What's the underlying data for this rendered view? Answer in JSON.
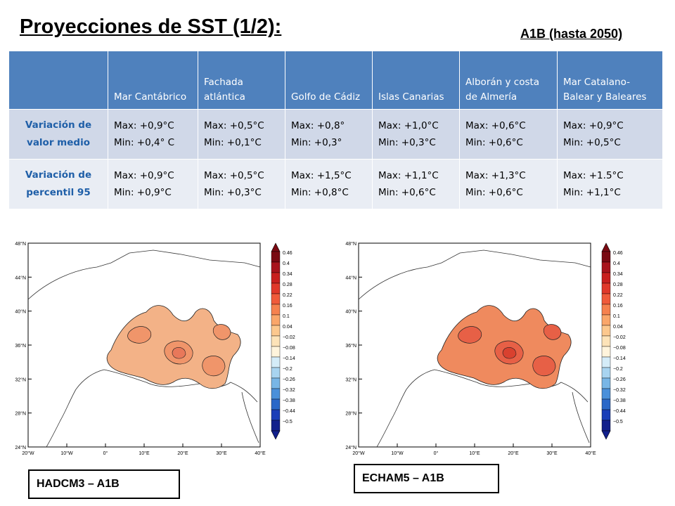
{
  "title": "Proyecciones de SST (1/2):",
  "subtitle": "A1B (hasta 2050)",
  "table": {
    "columns": [
      "",
      "Mar Cantábrico",
      "Fachada atlántica",
      "Golfo de Cádiz",
      "Islas Canarias",
      "Alborán y costa de Almería",
      "Mar Catalano-Balear y Baleares"
    ],
    "rows": [
      {
        "label": "Variación de valor medio",
        "cells": [
          [
            "Max: +0,9°C",
            "Min: +0,4° C"
          ],
          [
            "Max: +0,5°C",
            "Min: +0,1°C"
          ],
          [
            "Max: +0,8°",
            "Min: +0,3°"
          ],
          [
            "Max: +1,0°C",
            "Min: +0,3°C"
          ],
          [
            "Max: +0,6°C",
            "Min: +0,6°C"
          ],
          [
            "Max: +0,9°C",
            "Min: +0,5°C"
          ]
        ]
      },
      {
        "label": "Variación de percentil 95",
        "cells": [
          [
            "Max: +0,9°C",
            "Min: +0,9°C"
          ],
          [
            "Max: +0,5°C",
            "Min: +0,3°C"
          ],
          [
            "Max: +1,5°C",
            "Min: +0,8°C"
          ],
          [
            "Max: +1,1°C",
            "Min: +0,6°C"
          ],
          [
            "Max: +1,3°C",
            "Min: +0,6°C"
          ],
          [
            "Max: +1.5°C",
            "Min: +1,1°C"
          ]
        ]
      }
    ]
  },
  "maps": {
    "lat_labels": [
      "48°N",
      "44°N",
      "40°N",
      "36°N",
      "32°N",
      "28°N",
      "24°N"
    ],
    "lon_labels": [
      "20°W",
      "10°W",
      "0°",
      "10°E",
      "20°E",
      "30°E",
      "40°E"
    ],
    "colorbar": {
      "ticks": [
        "0.46",
        "0.4",
        "0.34",
        "0.28",
        "0.22",
        "0.16",
        "0.1",
        "0.04",
        "−0.02",
        "−0.08",
        "−0.14",
        "−0.2",
        "−0.26",
        "−0.32",
        "−0.38",
        "−0.44",
        "−0.5"
      ],
      "colors": [
        "#7a0a12",
        "#a8141c",
        "#c8201e",
        "#e0382a",
        "#f05a3a",
        "#f6814e",
        "#faa66a",
        "#fcc88e",
        "#fde3b8",
        "#fff4dc",
        "#d4ecf8",
        "#a8d4f0",
        "#78b6e6",
        "#4a90da",
        "#2a68c8",
        "#1a3eb8",
        "#12208c"
      ]
    },
    "panels": [
      {
        "model_label": "HADCM3 – A1B",
        "fill_colors": [
          "#f3b287",
          "#f0956a",
          "#e8785a"
        ]
      },
      {
        "model_label": "ECHAM5 – A1B",
        "fill_colors": [
          "#ef8a5e",
          "#e76046",
          "#d9412f"
        ]
      }
    ]
  }
}
